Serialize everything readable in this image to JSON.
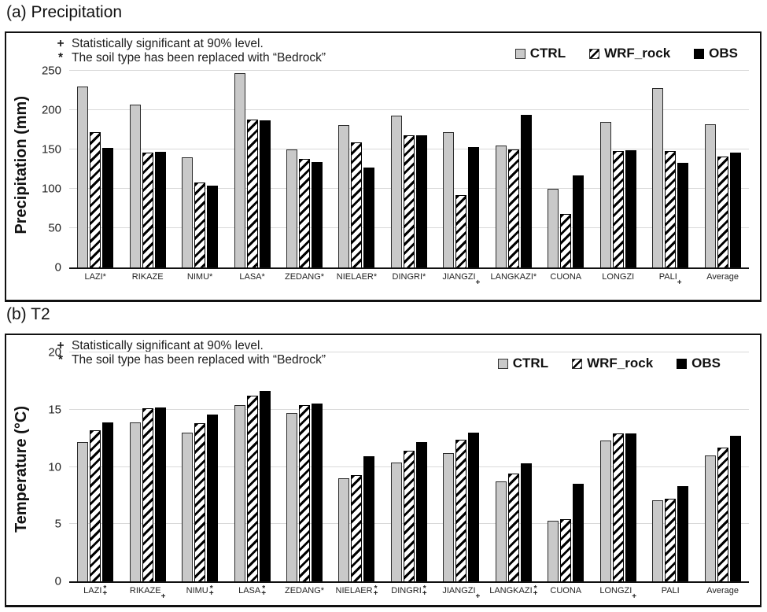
{
  "chart_data": [
    {
      "type": "bar",
      "panel_title": "(a) Precipitation",
      "ylabel": "Precipitation (mm)",
      "ylim": [
        0,
        250
      ],
      "yticks": [
        0,
        50,
        100,
        150,
        200,
        250
      ],
      "grid": true,
      "legend_position": "top-right-inside",
      "annotations": [
        {
          "marker": "+",
          "text": "Statistically significant at 90% level."
        },
        {
          "marker": "*",
          "text": "The soil type has been replaced with “Bedrock”"
        }
      ],
      "categories": [
        {
          "name": "LAZI*",
          "sup": "",
          "sub": ""
        },
        {
          "name": "RIKAZE",
          "sup": "",
          "sub": ""
        },
        {
          "name": "NIMU*",
          "sup": "",
          "sub": ""
        },
        {
          "name": "LASA*",
          "sup": "",
          "sub": ""
        },
        {
          "name": "ZEDANG*",
          "sup": "",
          "sub": ""
        },
        {
          "name": "NIELAER*",
          "sup": "",
          "sub": ""
        },
        {
          "name": "DINGRI*",
          "sup": "",
          "sub": ""
        },
        {
          "name": "JIANGZI",
          "sup": "",
          "sub": "+"
        },
        {
          "name": "LANGKAZI*",
          "sup": "",
          "sub": ""
        },
        {
          "name": "CUONA",
          "sup": "",
          "sub": ""
        },
        {
          "name": "LONGZI",
          "sup": "",
          "sub": ""
        },
        {
          "name": "PALI",
          "sup": "",
          "sub": "+"
        },
        {
          "name": "Average",
          "sup": "",
          "sub": ""
        }
      ],
      "series": [
        {
          "name": "CTRL",
          "style": "gray",
          "values": [
            230,
            207,
            140,
            247,
            150,
            181,
            193,
            172,
            155,
            100,
            185,
            228,
            182
          ]
        },
        {
          "name": "WRF_rock",
          "style": "hatch",
          "values": [
            172,
            146,
            108,
            188,
            138,
            159,
            168,
            92,
            150,
            68,
            148,
            148,
            141
          ]
        },
        {
          "name": "OBS",
          "style": "black",
          "values": [
            152,
            147,
            104,
            187,
            134,
            127,
            168,
            153,
            194,
            117,
            149,
            133,
            146
          ]
        }
      ]
    },
    {
      "type": "bar",
      "panel_title": "(b) T2",
      "ylabel": "Temperature (°C)",
      "ylim": [
        0,
        20
      ],
      "yticks": [
        0,
        5,
        10,
        15,
        20
      ],
      "grid": true,
      "legend_position": "top-right-inside",
      "annotations": [
        {
          "marker": "+",
          "text": "Statistically significant at 90% level."
        },
        {
          "marker": "*",
          "text": "The soil type has been replaced with “Bedrock”"
        }
      ],
      "categories": [
        {
          "name": "LAZI",
          "sup": "*",
          "sub": "+"
        },
        {
          "name": "RIKAZE",
          "sup": "",
          "sub": "+"
        },
        {
          "name": "NIMU",
          "sup": "*",
          "sub": "+"
        },
        {
          "name": "LASA",
          "sup": "*",
          "sub": "+"
        },
        {
          "name": "ZEDANG*",
          "sup": "",
          "sub": ""
        },
        {
          "name": "NIELAER",
          "sup": "*",
          "sub": "+"
        },
        {
          "name": "DINGRI",
          "sup": "*",
          "sub": "+"
        },
        {
          "name": "JIANGZI",
          "sup": "",
          "sub": "+"
        },
        {
          "name": "LANGKAZI",
          "sup": "*",
          "sub": "+"
        },
        {
          "name": "CUONA",
          "sup": "",
          "sub": ""
        },
        {
          "name": "LONGZI",
          "sup": "",
          "sub": "+"
        },
        {
          "name": "PALI",
          "sup": "",
          "sub": ""
        },
        {
          "name": "Average",
          "sup": "",
          "sub": ""
        }
      ],
      "series": [
        {
          "name": "CTRL",
          "style": "gray",
          "values": [
            12.2,
            13.9,
            13.0,
            15.4,
            14.7,
            9.0,
            10.4,
            11.2,
            8.7,
            5.3,
            12.3,
            7.1,
            11.0
          ]
        },
        {
          "name": "WRF_rock",
          "style": "hatch",
          "values": [
            13.2,
            15.1,
            13.8,
            16.2,
            15.4,
            9.3,
            11.4,
            12.4,
            9.4,
            5.4,
            12.9,
            7.2,
            11.7
          ]
        },
        {
          "name": "OBS",
          "style": "black",
          "values": [
            13.9,
            15.2,
            14.6,
            16.6,
            15.5,
            10.9,
            12.2,
            13.0,
            10.3,
            8.5,
            12.9,
            8.3,
            12.7
          ]
        }
      ]
    }
  ],
  "colors": {
    "ctrl_fill": "#c9c9c9",
    "obs_fill": "#000000",
    "hatch_stroke": "#000000",
    "gridline": "#d9d9d9",
    "panel_border": "#111111"
  }
}
